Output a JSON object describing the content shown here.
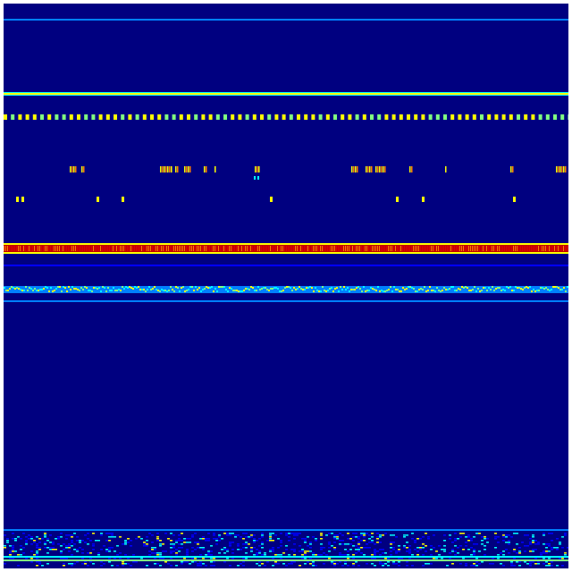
{
  "colormap": {
    "background": "#000080",
    "low": "#0000ff",
    "mid_low": "#0080ff",
    "mid": "#00ffff",
    "mid_high": "#80ff80",
    "high": "#ffff00",
    "higher": "#ff8000",
    "max": "#c00000"
  }
}
